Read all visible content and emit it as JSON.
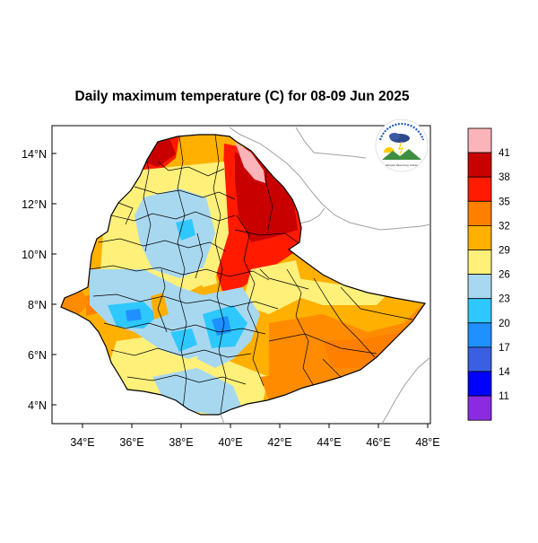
{
  "title": "Daily maximum temperature (C) for 08-09 Jun 2025",
  "axes": {
    "lat_labels": [
      "14°N",
      "12°N",
      "10°N",
      "8°N",
      "6°N",
      "4°N"
    ],
    "lon_labels": [
      "34°E",
      "36°E",
      "38°E",
      "40°E",
      "42°E",
      "44°E",
      "46°E",
      "48°E"
    ]
  },
  "colorbar": {
    "labels": [
      "41",
      "38",
      "35",
      "32",
      "29",
      "26",
      "23",
      "20",
      "17",
      "14",
      "11"
    ],
    "colors": [
      "#fbb4b9",
      "#c80000",
      "#ff1a00",
      "#ff7f00",
      "#ffb000",
      "#fff07a",
      "#a8d8f0",
      "#2ec8ff",
      "#1e90ff",
      "#3a5fe0",
      "#0000ff",
      "#8a2be2"
    ]
  },
  "logo": {
    "caption": "Ethiopian Meteorology Institute"
  }
}
